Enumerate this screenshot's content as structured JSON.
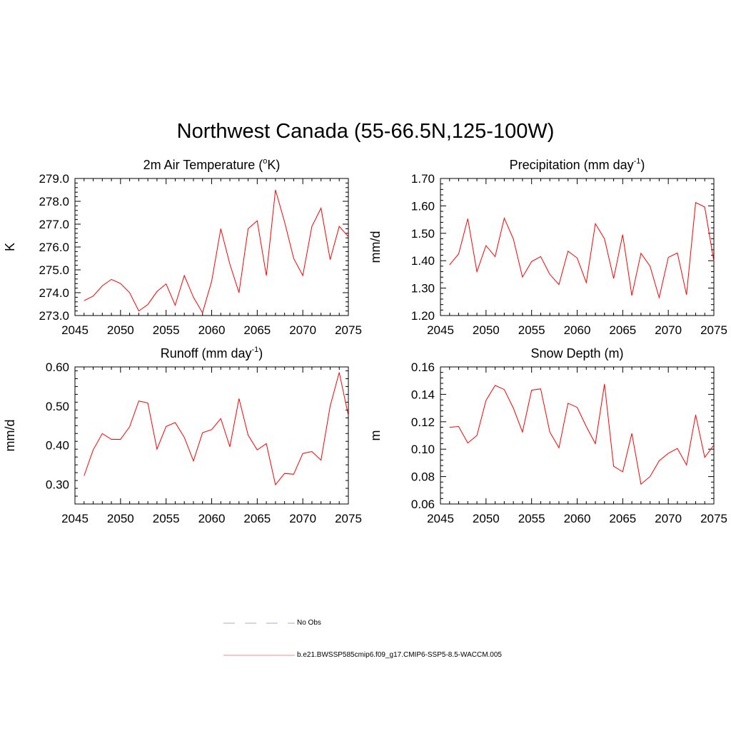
{
  "figure_title": "Northwest Canada (55-66.5N,125-100W)",
  "chart_data": [
    {
      "type": "line",
      "title_parts": [
        "2m Air Temperature (",
        "o",
        "K)"
      ],
      "ylabel": "K",
      "xlim": [
        2045,
        2075
      ],
      "ylim": [
        273.0,
        279.0
      ],
      "xticks": [
        2045,
        2050,
        2055,
        2060,
        2065,
        2070,
        2075
      ],
      "yticks": [
        273.0,
        274.0,
        275.0,
        276.0,
        277.0,
        278.0,
        279.0
      ],
      "ytick_labels": [
        "273.0",
        "274.0",
        "275.0",
        "276.0",
        "277.0",
        "278.0",
        "279.0"
      ],
      "series": [
        {
          "name": "b.e21.BWSSP585cmip6.f09_g17.CMIP6-SSP5-8.5-WACCM.005",
          "color": "#ff0000",
          "x": [
            2046,
            2047,
            2048,
            2049,
            2050,
            2051,
            2052,
            2053,
            2054,
            2055,
            2056,
            2057,
            2058,
            2059,
            2060,
            2061,
            2062,
            2063,
            2064,
            2065,
            2066,
            2067,
            2068,
            2069,
            2070,
            2071,
            2072,
            2073,
            2074,
            2075
          ],
          "y": [
            273.65,
            273.85,
            274.3,
            274.58,
            274.4,
            274.0,
            273.2,
            273.48,
            274.05,
            274.38,
            273.45,
            274.75,
            273.8,
            273.12,
            274.5,
            276.8,
            275.25,
            274.0,
            276.8,
            277.15,
            274.75,
            278.5,
            277.1,
            275.5,
            274.75,
            276.9,
            277.7,
            275.45,
            276.9,
            276.45
          ]
        }
      ]
    },
    {
      "type": "line",
      "title_parts": [
        "Precipitation (mm day",
        "-1",
        ")"
      ],
      "ylabel": "mm/d",
      "xlim": [
        2045,
        2075
      ],
      "ylim": [
        1.2,
        1.7
      ],
      "xticks": [
        2045,
        2050,
        2055,
        2060,
        2065,
        2070,
        2075
      ],
      "yticks": [
        1.2,
        1.3,
        1.4,
        1.5,
        1.6,
        1.7
      ],
      "ytick_labels": [
        "1.20",
        "1.30",
        "1.40",
        "1.50",
        "1.60",
        "1.70"
      ],
      "series": [
        {
          "name": "b.e21.BWSSP585cmip6.f09_g17.CMIP6-SSP5-8.5-WACCM.005",
          "color": "#ff0000",
          "x": [
            2046,
            2047,
            2048,
            2049,
            2050,
            2051,
            2052,
            2053,
            2054,
            2055,
            2056,
            2057,
            2058,
            2059,
            2060,
            2061,
            2062,
            2063,
            2064,
            2065,
            2066,
            2067,
            2068,
            2069,
            2070,
            2071,
            2072,
            2073,
            2074,
            2075
          ],
          "y": [
            1.385,
            1.425,
            1.553,
            1.36,
            1.455,
            1.415,
            1.555,
            1.48,
            1.34,
            1.397,
            1.415,
            1.35,
            1.313,
            1.435,
            1.41,
            1.32,
            1.535,
            1.48,
            1.335,
            1.495,
            1.273,
            1.427,
            1.38,
            1.265,
            1.412,
            1.428,
            1.276,
            1.612,
            1.596,
            1.398
          ]
        }
      ]
    },
    {
      "type": "line",
      "title_parts": [
        "Runoff (mm day",
        "-1",
        ")"
      ],
      "ylabel": "mm/d",
      "xlim": [
        2045,
        2075
      ],
      "ylim": [
        0.25,
        0.6
      ],
      "xticks": [
        2045,
        2050,
        2055,
        2060,
        2065,
        2070,
        2075
      ],
      "yticks": [
        0.3,
        0.4,
        0.5,
        0.6
      ],
      "ytick_labels": [
        "0.30",
        "0.40",
        "0.50",
        "0.60"
      ],
      "series": [
        {
          "name": "b.e21.BWSSP585cmip6.f09_g17.CMIP6-SSP5-8.5-WACCM.005",
          "color": "#ff0000",
          "x": [
            2046,
            2047,
            2048,
            2049,
            2050,
            2051,
            2052,
            2053,
            2054,
            2055,
            2056,
            2057,
            2058,
            2059,
            2060,
            2061,
            2062,
            2063,
            2064,
            2065,
            2066,
            2067,
            2068,
            2069,
            2070,
            2071,
            2072,
            2073,
            2074,
            2075
          ],
          "y": [
            0.322,
            0.388,
            0.43,
            0.415,
            0.415,
            0.447,
            0.513,
            0.508,
            0.39,
            0.448,
            0.458,
            0.42,
            0.36,
            0.432,
            0.44,
            0.468,
            0.396,
            0.519,
            0.426,
            0.388,
            0.404,
            0.299,
            0.328,
            0.326,
            0.379,
            0.384,
            0.362,
            0.5,
            0.586,
            0.476
          ]
        }
      ]
    },
    {
      "type": "line",
      "title_parts": [
        "Snow Depth (m)"
      ],
      "ylabel": "m",
      "xlim": [
        2045,
        2075
      ],
      "ylim": [
        0.06,
        0.16
      ],
      "xticks": [
        2045,
        2050,
        2055,
        2060,
        2065,
        2070,
        2075
      ],
      "yticks": [
        0.06,
        0.08,
        0.1,
        0.12,
        0.14,
        0.16
      ],
      "ytick_labels": [
        "0.06",
        "0.08",
        "0.10",
        "0.12",
        "0.14",
        "0.16"
      ],
      "series": [
        {
          "name": "b.e21.BWSSP585cmip6.f09_g17.CMIP6-SSP5-8.5-WACCM.005",
          "color": "#ff0000",
          "x": [
            2046,
            2047,
            2048,
            2049,
            2050,
            2051,
            2052,
            2053,
            2054,
            2055,
            2056,
            2057,
            2058,
            2059,
            2060,
            2061,
            2062,
            2063,
            2064,
            2065,
            2066,
            2067,
            2068,
            2069,
            2070,
            2071,
            2072,
            2073,
            2074,
            2075
          ],
          "y": [
            0.116,
            0.1165,
            0.1045,
            0.11,
            0.1355,
            0.1465,
            0.1435,
            0.13,
            0.1125,
            0.143,
            0.144,
            0.1125,
            0.101,
            0.1335,
            0.1305,
            0.1165,
            0.104,
            0.1475,
            0.0875,
            0.0835,
            0.1115,
            0.0745,
            0.08,
            0.0915,
            0.097,
            0.1005,
            0.0885,
            0.125,
            0.094,
            0.103
          ]
        }
      ]
    }
  ],
  "legend": {
    "entries": [
      {
        "label": "No Obs",
        "color": "#aaaadd",
        "style": "dashed"
      },
      {
        "label": "b.e21.BWSSP585cmip6.f09_g17.CMIP6-SSP5-8.5-WACCM.005",
        "color": "#ff8888",
        "style": "solid"
      }
    ]
  }
}
